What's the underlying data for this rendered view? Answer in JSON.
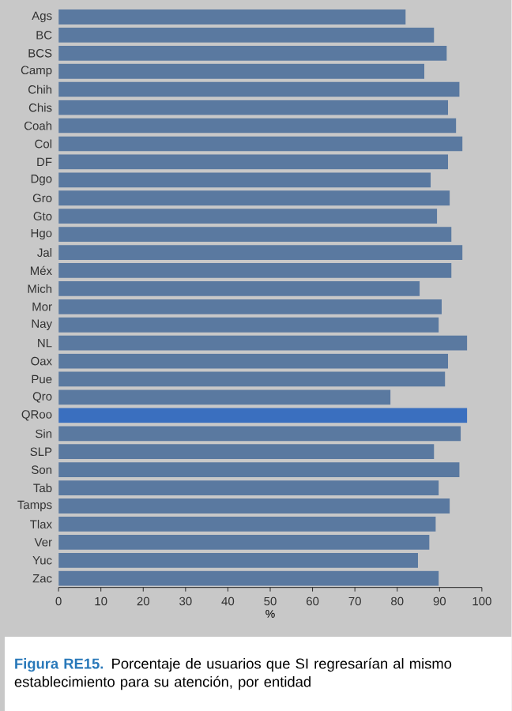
{
  "chart_data": {
    "type": "bar",
    "orientation": "horizontal",
    "categories": [
      "Ags",
      "BC",
      "BCS",
      "Camp",
      "Chih",
      "Chis",
      "Coah",
      "Col",
      "DF",
      "Dgo",
      "Gro",
      "Gto",
      "Hgo",
      "Jal",
      "Méx",
      "Mich",
      "Mor",
      "Nay",
      "NL",
      "Oax",
      "Pue",
      "Qro",
      "QRoo",
      "Sin",
      "SLP",
      "Son",
      "Tab",
      "Tamps",
      "Tlax",
      "Ver",
      "Yuc",
      "Zac"
    ],
    "values": [
      82.0,
      88.7,
      91.7,
      86.4,
      94.7,
      92.0,
      93.9,
      95.4,
      92.0,
      87.9,
      92.4,
      89.4,
      92.8,
      95.4,
      92.8,
      85.3,
      90.5,
      89.8,
      96.5,
      92.0,
      91.3,
      78.4,
      96.5,
      95.0,
      88.7,
      94.7,
      89.8,
      92.4,
      89.1,
      87.6,
      84.9,
      89.8
    ],
    "colors": [
      "#5a79a0",
      "#5a79a0",
      "#5a79a0",
      "#5a79a0",
      "#5a79a0",
      "#5a79a0",
      "#5a79a0",
      "#5a79a0",
      "#5a79a0",
      "#5a79a0",
      "#5a79a0",
      "#5a79a0",
      "#5a79a0",
      "#5a79a0",
      "#5a79a0",
      "#5a79a0",
      "#5a79a0",
      "#5a79a0",
      "#5a79a0",
      "#5a79a0",
      "#5a79a0",
      "#5a79a0",
      "#3a6fbf",
      "#5a79a0",
      "#5a79a0",
      "#5a79a0",
      "#5a79a0",
      "#5a79a0",
      "#5a79a0",
      "#5a79a0",
      "#5a79a0",
      "#5a79a0"
    ],
    "xlabel": "%",
    "xlim": [
      0,
      100
    ],
    "xticks": [
      0,
      10,
      20,
      30,
      40,
      50,
      60,
      70,
      80,
      90,
      100
    ],
    "annotations": [
      "Figura RE15.",
      "Porcentaje de usuarios que SI regresarían al mismo establecimiento para su atención, por entidad"
    ]
  }
}
